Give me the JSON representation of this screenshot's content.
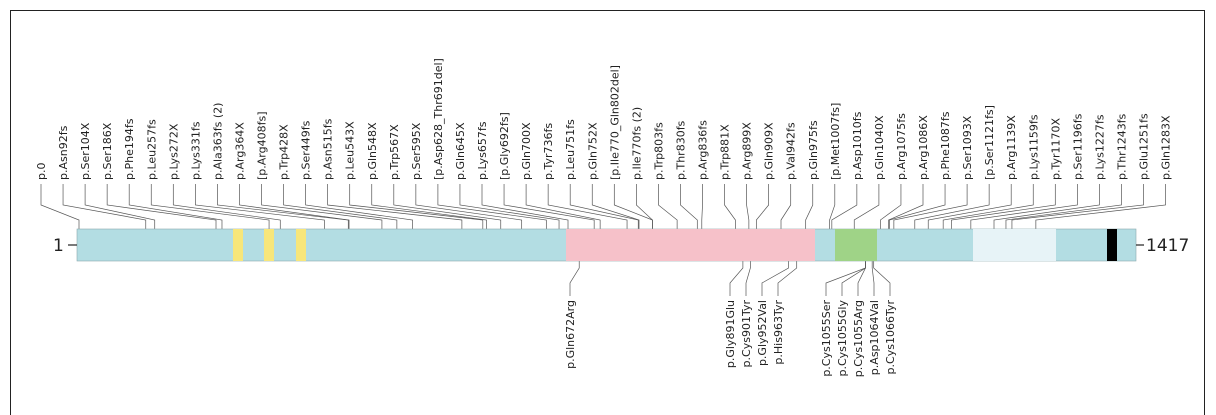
{
  "protein": {
    "start_label": "1",
    "end_label": "1417",
    "length": 1417,
    "colors": {
      "base": "#b3dde3",
      "pink_region": "#f6c1c9",
      "green_region": "#9fd387",
      "yellow_marks": "#f7e67a",
      "black_mark": "#000000",
      "light_region": "#e7f3f7"
    }
  },
  "mutations_above": [
    "p.0",
    "p.Asn92fs",
    "p.Ser104X",
    "p.Ser186X",
    "p.Phe194fs",
    "p.Leu257fs",
    "p.Lys272X",
    "p.Lys331fs",
    "p.Ala363fs (2)",
    "p.Arg364X",
    "[p.Arg408fs]",
    "p.Trp428X",
    "p.Ser449fs",
    "p.Asn515fs",
    "p.Leu543X",
    "p.Gln548X",
    "p.Trp567X",
    "p.Ser595X",
    "[p.Asp628_Thr691del]",
    "p.Gln645X",
    "p.Lys657fs",
    "[p.Gly692fs]",
    "p.Gln700X",
    "p.Tyr736fs",
    "p.Leu751fs",
    "p.Gln752X",
    "[p.Ile770_Gln802del]",
    "p.Ile770fs (2)",
    "p.Trp803fs",
    "p.Thr830fs",
    "p.Arg836fs",
    "p.Trp881X",
    "p.Arg899X",
    "p.Gln909X",
    "p.Val942fs",
    "p.Gln975fs",
    "[p.Met1007fs]",
    "p.Asp1010fs",
    "p.Gln1040X",
    "p.Arg1075fs",
    "p.Arg1086X",
    "p.Phe1087fs",
    "p.Ser1093X",
    "[p.Ser1121fs]",
    "p.Arg1139X",
    "p.Lys1159fs",
    "p.Tyr1170X",
    "p.Ser1196fs",
    "p.Lys1227fs",
    "p.Thr1243fs",
    "p.Glu1251fs",
    "p.Gln1283X"
  ],
  "mutations_below": [
    "p.Gln672Arg",
    "p.Gly891Glu",
    "p.Cys901Tyr",
    "p.Gly952Val",
    "p.His963Tyr",
    "p.Cys1055Ser",
    "p.Cys1055Gly",
    "p.Cys1055Arg",
    "p.Asp1064Val",
    "p.Cys1066Tyr"
  ]
}
